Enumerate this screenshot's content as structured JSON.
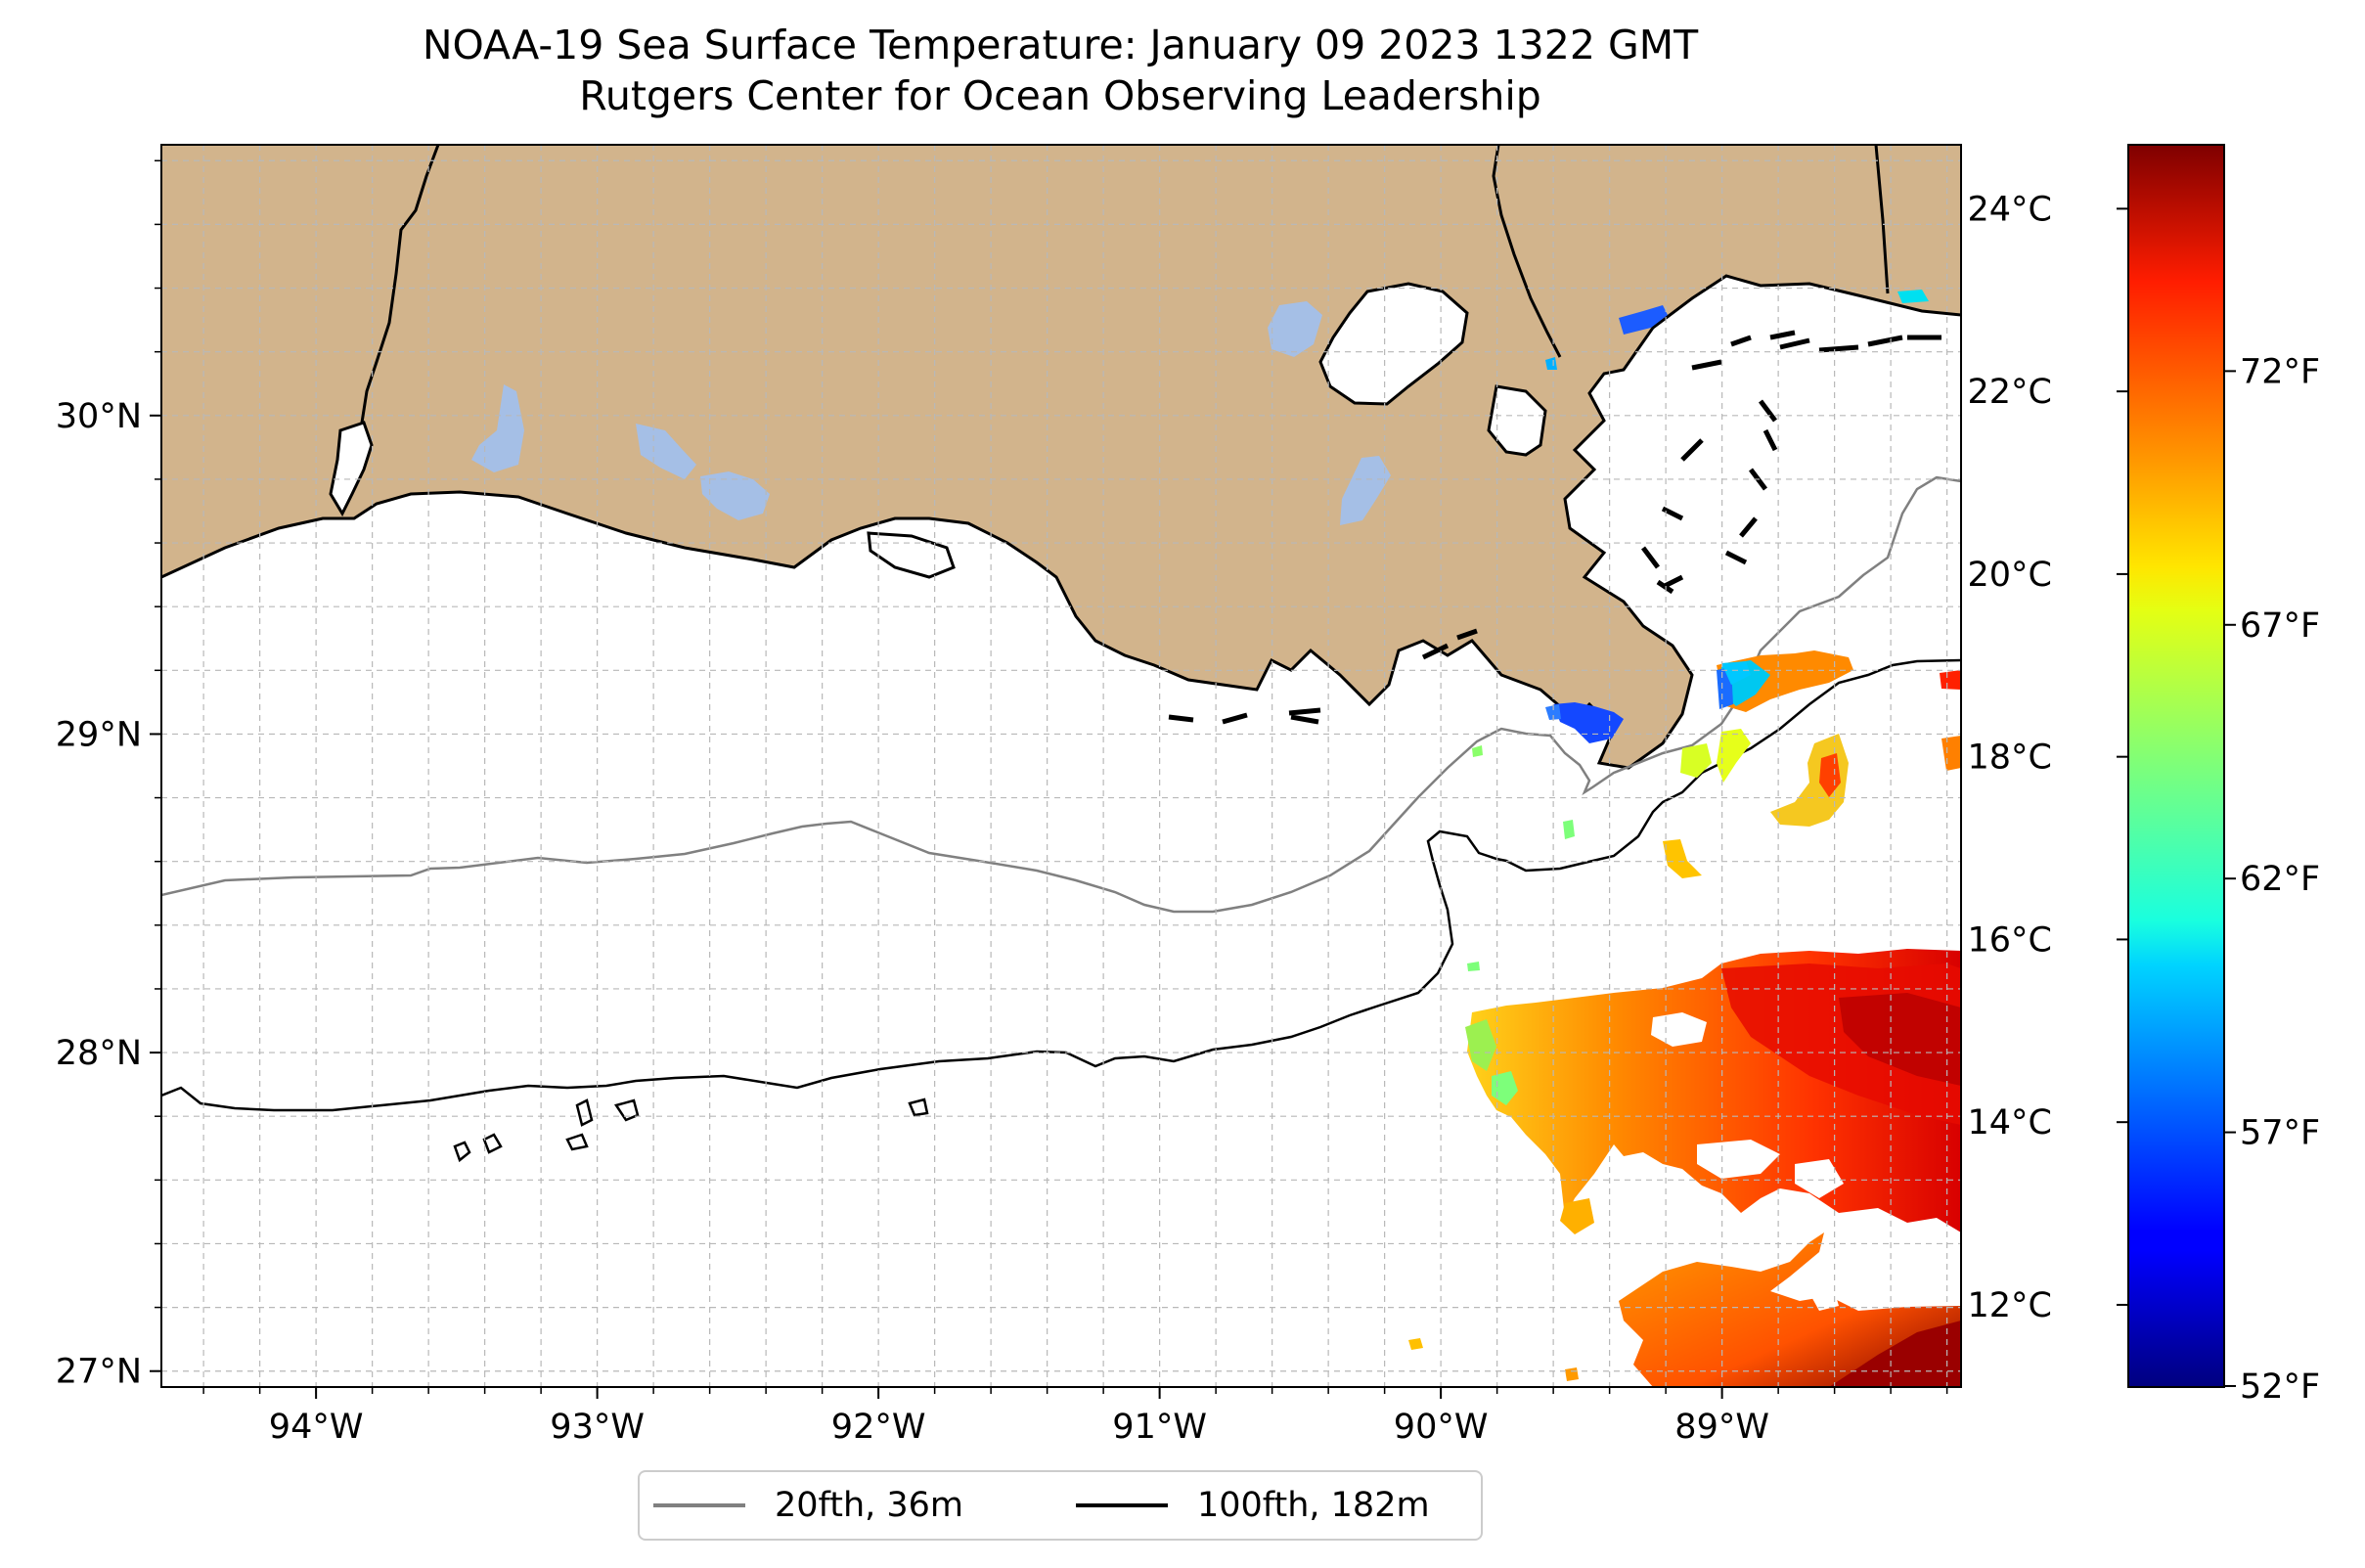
{
  "title": {
    "line1": "NOAA-19 Sea Surface Temperature: January 09 2023 1322 GMT",
    "line2": "Rutgers Center for Ocean Observing Leadership"
  },
  "map": {
    "lon_range": [
      -94.55,
      -88.15
    ],
    "lat_range": [
      26.95,
      30.85
    ],
    "lon_ticks": [
      {
        "value": -94,
        "label": "94°W"
      },
      {
        "value": -93,
        "label": "93°W"
      },
      {
        "value": -92,
        "label": "92°W"
      },
      {
        "value": -91,
        "label": "91°W"
      },
      {
        "value": -90,
        "label": "90°W"
      },
      {
        "value": -89,
        "label": "89°W"
      }
    ],
    "lat_ticks": [
      {
        "value": 27,
        "label": "27°N"
      },
      {
        "value": 28,
        "label": "28°N"
      },
      {
        "value": 29,
        "label": "29°N"
      },
      {
        "value": 30,
        "label": "30°N"
      }
    ],
    "gridlines": true,
    "land_color": "#d2b48c",
    "water_color": "#a5bfe6"
  },
  "colorbar": {
    "colormap": "jet",
    "range_c": [
      11.1,
      24.7
    ],
    "celsius_ticks": [
      {
        "value": 12,
        "label": "12°C"
      },
      {
        "value": 14,
        "label": "14°C"
      },
      {
        "value": 16,
        "label": "16°C"
      },
      {
        "value": 18,
        "label": "18°C"
      },
      {
        "value": 20,
        "label": "20°C"
      },
      {
        "value": 22,
        "label": "22°C"
      },
      {
        "value": 24,
        "label": "24°C"
      }
    ],
    "fahrenheit_ticks": [
      {
        "value": 52,
        "label": "52°F"
      },
      {
        "value": 57,
        "label": "57°F"
      },
      {
        "value": 62,
        "label": "62°F"
      },
      {
        "value": 67,
        "label": "67°F"
      },
      {
        "value": 72,
        "label": "72°F"
      }
    ]
  },
  "legend": {
    "items": [
      {
        "label": "20fth, 36m",
        "color": "#808080"
      },
      {
        "label": "100fth, 182m",
        "color": "#000000"
      }
    ]
  }
}
